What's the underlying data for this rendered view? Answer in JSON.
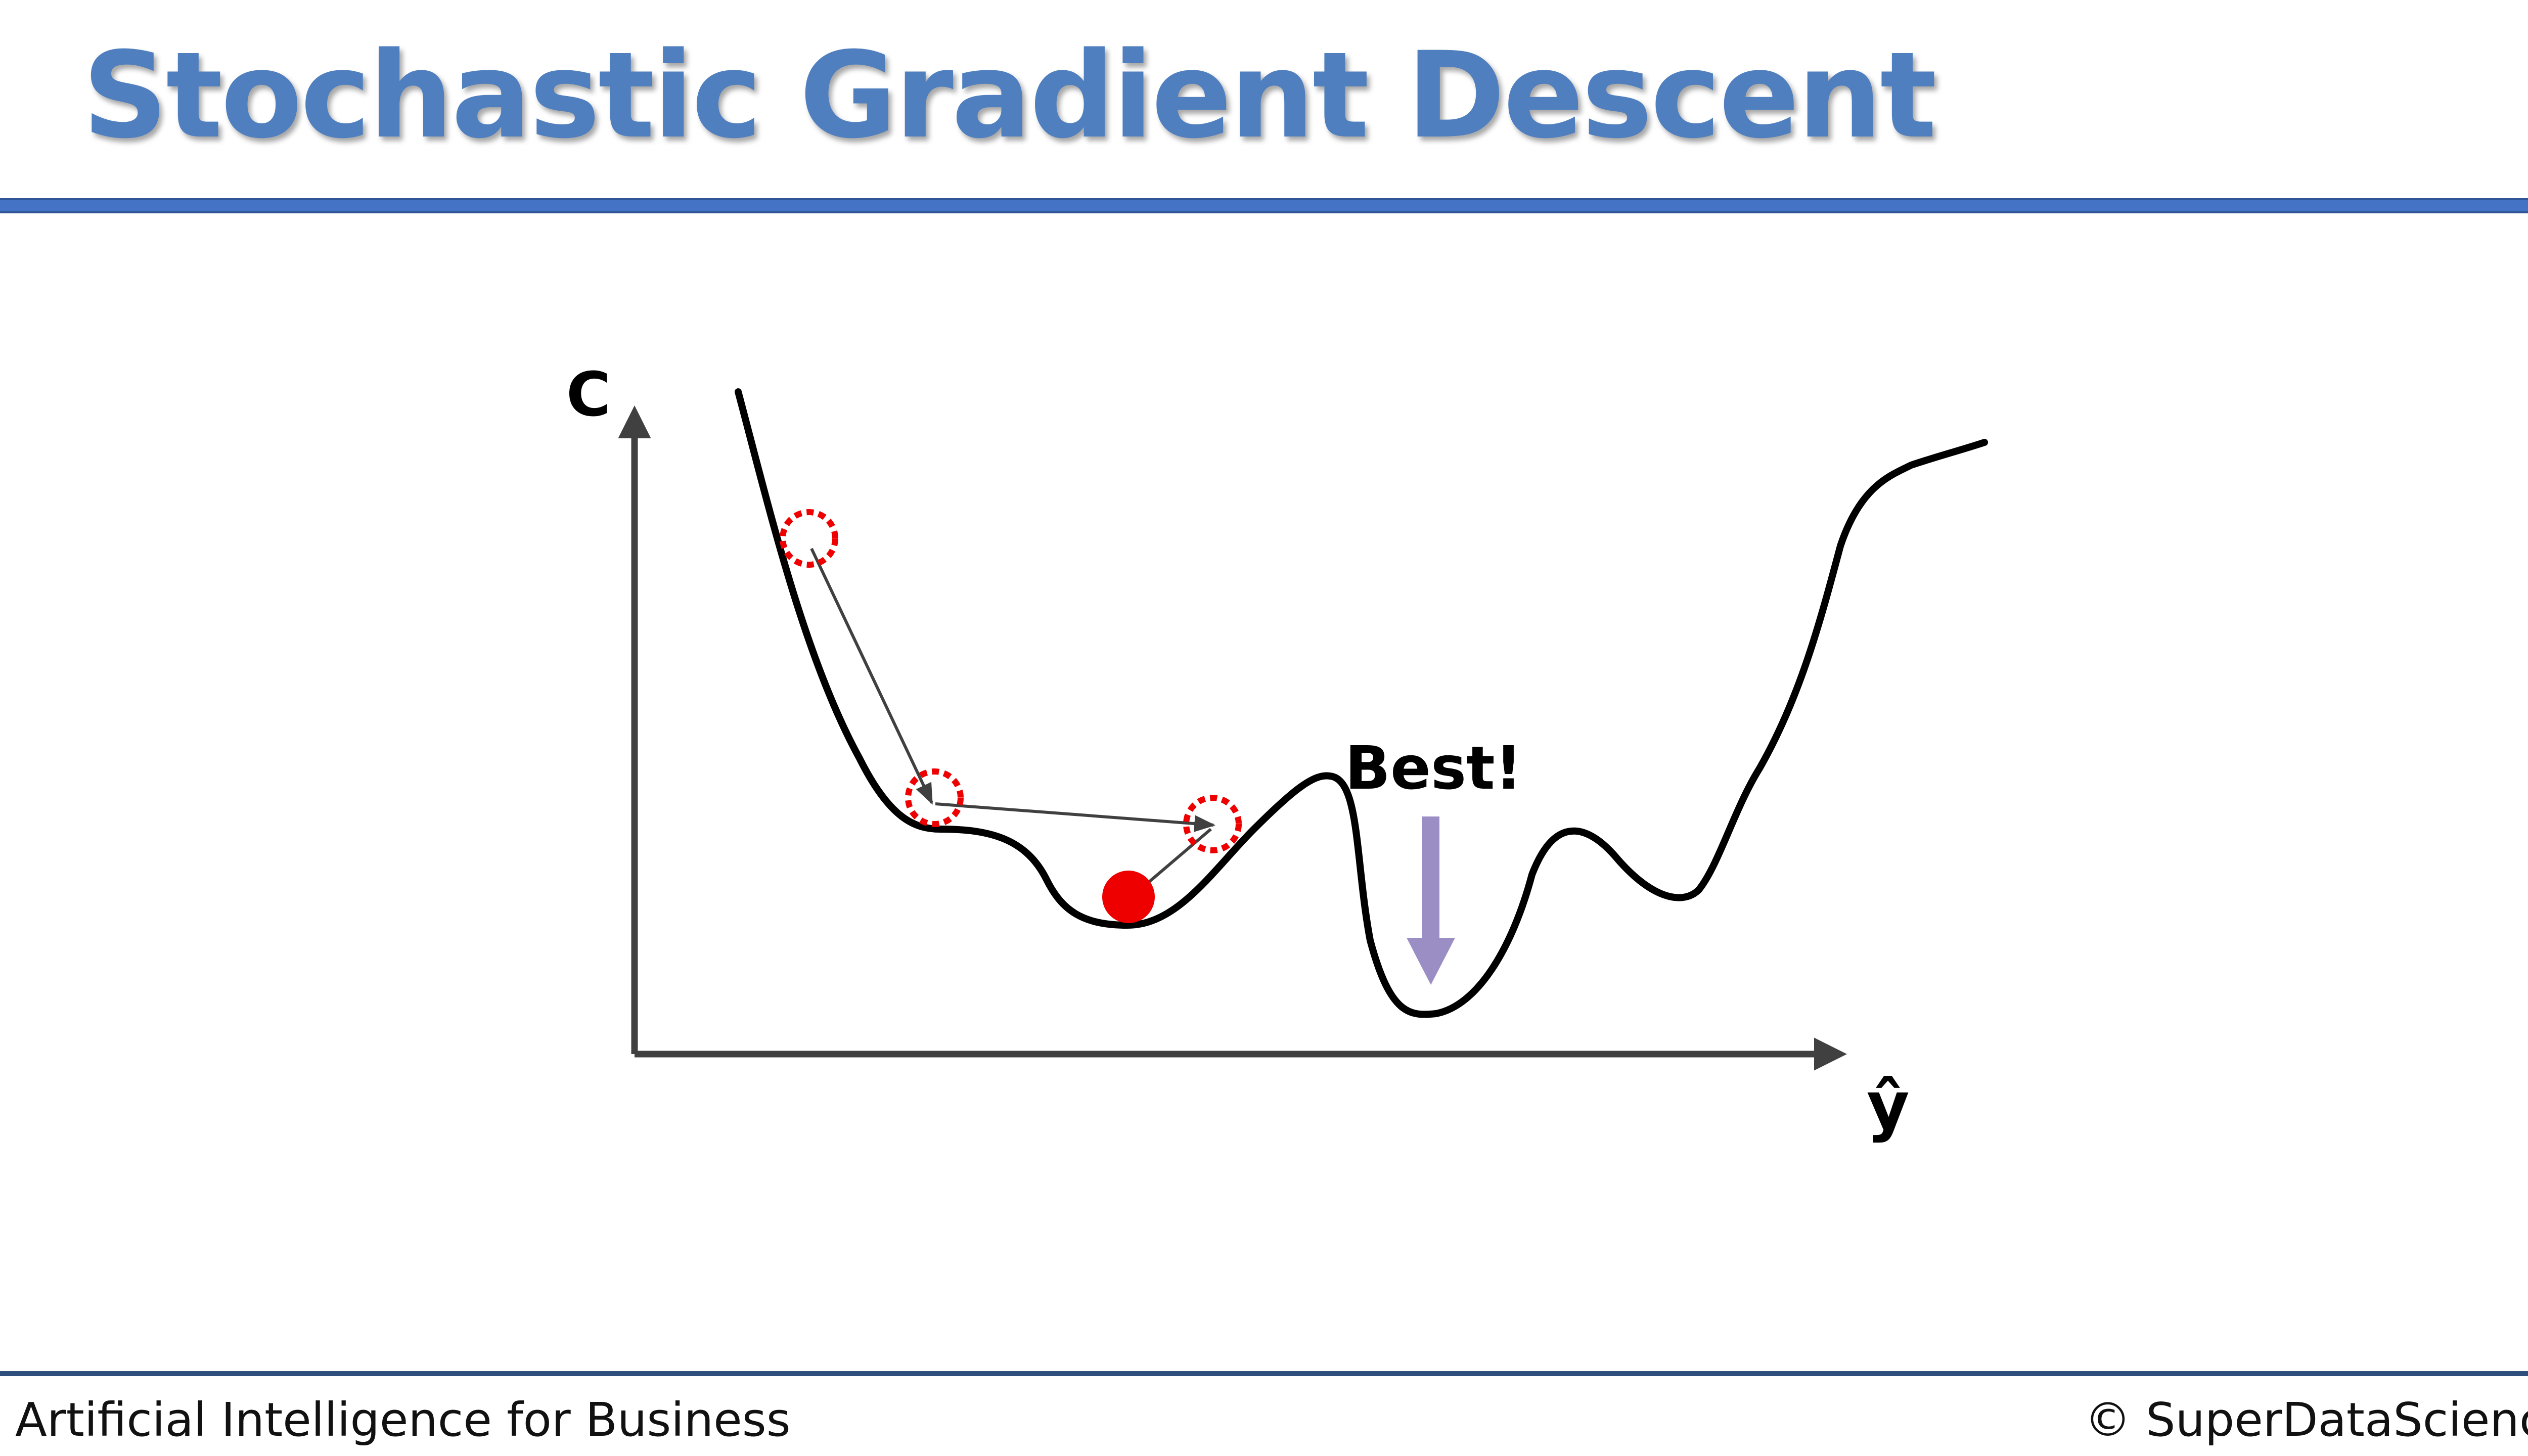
{
  "slide": {
    "title": "Stochastic Gradient Descent",
    "title_color": "#4f7fbf",
    "rule_color": "#4472c4"
  },
  "diagram": {
    "y_axis_label": "C",
    "x_axis_label": "ŷ",
    "annotation": "Best!",
    "colors": {
      "curve": "#000000",
      "axes": "#404040",
      "marker": "#ee0000",
      "best_arrow": "#9b8ec4",
      "step_arrow": "#404040"
    },
    "markers": [
      "dotted-circle",
      "dotted-circle",
      "dotted-circle",
      "solid-ball"
    ]
  },
  "footer": {
    "left": "Artificial Intelligence for Business",
    "right": "© SuperDataScience"
  }
}
